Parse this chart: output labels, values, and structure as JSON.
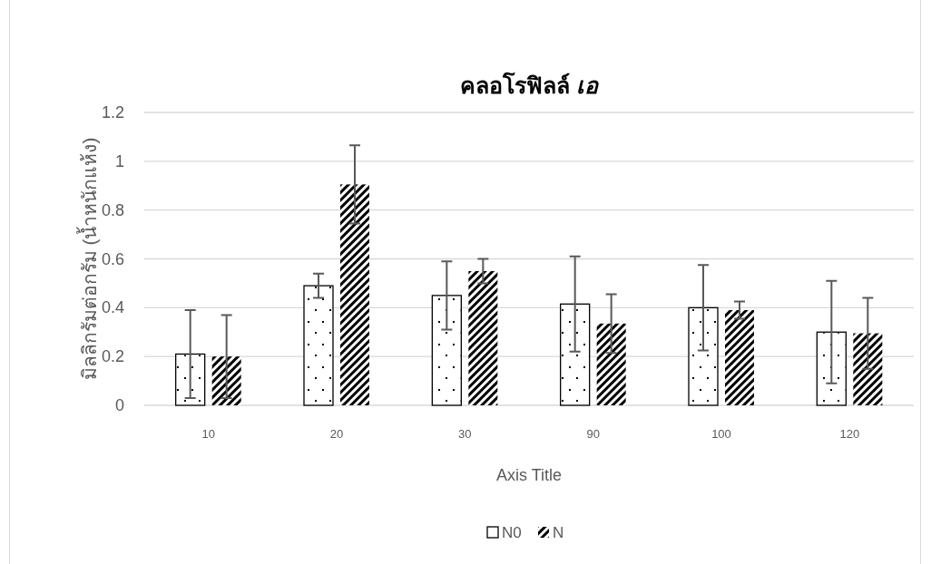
{
  "chart_data": {
    "type": "bar",
    "title": "คลอโรฟิลล์ *เอ*",
    "xlabel": "Axis Title",
    "ylabel": "มิลลิกรัมต่อกรัม (น้ำหนักแห้ง)",
    "categories": [
      "10",
      "20",
      "30",
      "90",
      "100",
      "120"
    ],
    "series": [
      {
        "name": "N0",
        "color": "#ffffff",
        "values": [
          0.21,
          0.49,
          0.45,
          0.415,
          0.4,
          0.3
        ],
        "errors": [
          0.18,
          0.05,
          0.14,
          0.195,
          0.175,
          0.21
        ]
      },
      {
        "name": "N",
        "color": "#000000",
        "values": [
          0.2,
          0.905,
          0.55,
          0.335,
          0.39,
          0.295
        ],
        "errors": [
          0.17,
          0.16,
          0.05,
          0.12,
          0.035,
          0.145
        ]
      }
    ],
    "ylim": [
      0,
      1.2
    ],
    "yticks": [
      0,
      0.2,
      0.4,
      0.6,
      0.8,
      1,
      1.2
    ],
    "grid": "y",
    "legend": "bottom"
  }
}
